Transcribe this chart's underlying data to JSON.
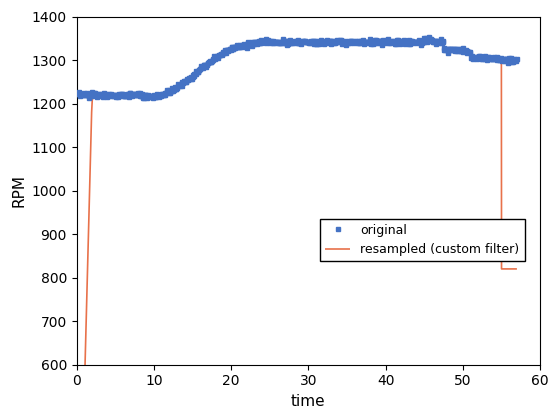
{
  "title": "",
  "xlabel": "time",
  "ylabel": "RPM",
  "xlim": [
    0,
    60
  ],
  "ylim": [
    600,
    1400
  ],
  "xticks": [
    0,
    10,
    20,
    30,
    40,
    50,
    60
  ],
  "yticks": [
    600,
    700,
    800,
    900,
    1000,
    1100,
    1200,
    1300,
    1400
  ],
  "original_color": "#4472C4",
  "resampled_color": "#E8714A",
  "background_color": "#FFFFFF",
  "figsize": [
    5.6,
    4.2
  ],
  "dpi": 100
}
